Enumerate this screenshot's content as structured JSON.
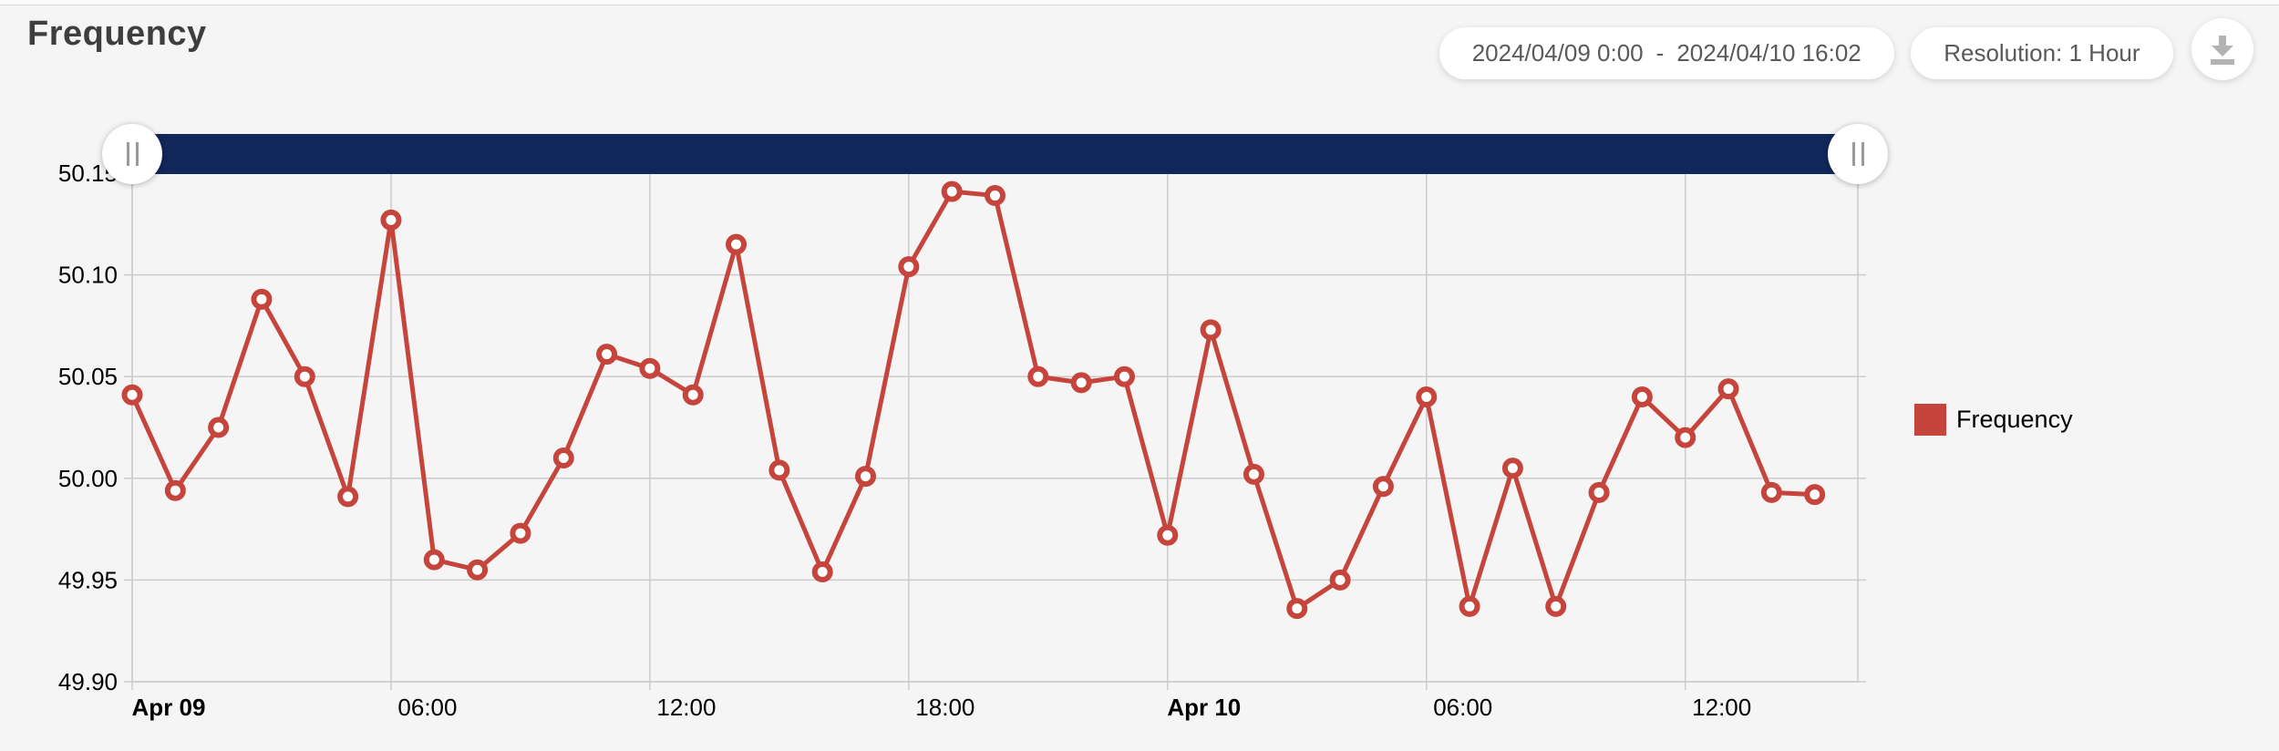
{
  "header": {
    "title": "Frequency",
    "date_range_start": "2024/04/09 0:00",
    "date_range_separator": "-",
    "date_range_end": "2024/04/10 16:02",
    "resolution_label": "Resolution: 1 Hour",
    "download_icon": "download-icon"
  },
  "legend": {
    "label": "Frequency",
    "swatch_color": "#c5443b"
  },
  "range_selector": {
    "bar_color": "#12275a",
    "left_handle_icon": "drag-grip-icon",
    "right_handle_icon": "drag-grip-icon"
  },
  "chart_data": {
    "type": "line",
    "title": "Frequency",
    "legend_position": "right",
    "grid": true,
    "grid_color": "#cccccc",
    "x_axis": {
      "total_hours": 40,
      "tick_labels": [
        {
          "hour": 0,
          "label": "Apr 09",
          "bold": true
        },
        {
          "hour": 6,
          "label": "06:00",
          "bold": false
        },
        {
          "hour": 12,
          "label": "12:00",
          "bold": false
        },
        {
          "hour": 18,
          "label": "18:00",
          "bold": false
        },
        {
          "hour": 24,
          "label": "Apr 10",
          "bold": true
        },
        {
          "hour": 30,
          "label": "06:00",
          "bold": false
        },
        {
          "hour": 36,
          "label": "12:00",
          "bold": false
        }
      ]
    },
    "y_axis": {
      "min": 49.9,
      "max": 50.15,
      "tick_step": 0.05,
      "tick_labels": [
        "49.90",
        "49.95",
        "50.00",
        "50.05",
        "50.10",
        "50.15"
      ]
    },
    "series": [
      {
        "name": "Frequency",
        "color": "#c5443b",
        "point_fill": "#ffffff",
        "start": "2024/04/09 0:00",
        "interval": "1 hour",
        "values": [
          50.041,
          49.994,
          50.025,
          50.088,
          50.05,
          49.991,
          50.127,
          49.96,
          49.955,
          49.973,
          50.01,
          50.061,
          50.054,
          50.041,
          50.115,
          50.004,
          49.954,
          50.001,
          50.104,
          50.141,
          50.139,
          50.05,
          50.047,
          50.05,
          49.972,
          50.073,
          50.002,
          49.936,
          49.95,
          49.996,
          50.04,
          49.937,
          50.005,
          49.937,
          49.993,
          50.04,
          50.02,
          50.044,
          49.993,
          49.992
        ]
      }
    ]
  }
}
